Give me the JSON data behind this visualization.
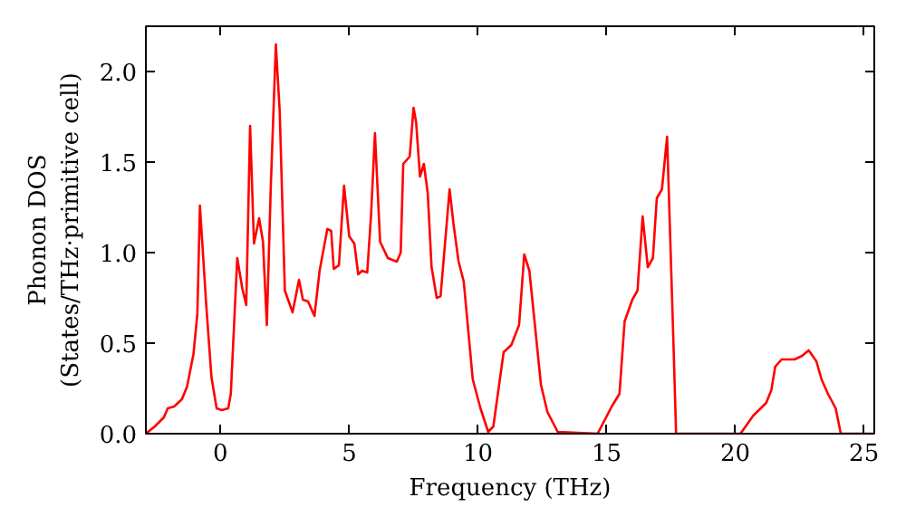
{
  "chart_data": {
    "type": "line",
    "xlabel": "Frequency (THz)",
    "ylabel": "Phonon DOS\n(States/THz·primitive cell)",
    "xlim": [
      -2.9,
      25.4
    ],
    "ylim": [
      0,
      2.25
    ],
    "xticks": [
      0,
      5,
      10,
      15,
      20,
      25
    ],
    "yticks": [
      {
        "value": 0,
        "label": "0.0"
      },
      {
        "value": 0.5,
        "label": "0.5"
      },
      {
        "value": 1,
        "label": "1.0"
      },
      {
        "value": 1.5,
        "label": "1.5"
      },
      {
        "value": 2,
        "label": "2.0"
      }
    ],
    "grid": false,
    "marker": "none",
    "line_style": "solid",
    "series": [
      {
        "color": "#ff0000",
        "x": [
          -2.9,
          -2.55,
          -2.2,
          -2.05,
          -1.8,
          -1.5,
          -1.3,
          -1.05,
          -0.9,
          -0.8,
          -0.55,
          -0.35,
          -0.15,
          0.05,
          0.3,
          0.4,
          0.65,
          0.85,
          1.0,
          1.15,
          1.3,
          1.5,
          1.65,
          1.8,
          1.95,
          2.15,
          2.3,
          2.5,
          2.8,
          3.05,
          3.2,
          3.4,
          3.65,
          3.85,
          4.15,
          4.3,
          4.4,
          4.6,
          4.8,
          5.0,
          5.2,
          5.35,
          5.5,
          5.7,
          5.85,
          6.0,
          6.2,
          6.5,
          6.85,
          7.0,
          7.1,
          7.35,
          7.5,
          7.6,
          7.75,
          7.9,
          8.05,
          8.2,
          8.4,
          8.55,
          8.9,
          9.05,
          9.25,
          9.45,
          9.8,
          10.1,
          10.4,
          10.6,
          11.0,
          11.3,
          11.6,
          11.8,
          12.0,
          12.45,
          12.7,
          13.1,
          14.65,
          15.2,
          15.5,
          15.7,
          16.0,
          16.2,
          16.4,
          16.6,
          16.8,
          16.95,
          17.15,
          17.35,
          17.6,
          17.7,
          20.2,
          20.7,
          21.2,
          21.4,
          21.55,
          21.8,
          22.3,
          22.6,
          22.85,
          23.15,
          23.35,
          23.6,
          23.9,
          24.1,
          25.4
        ],
        "values": [
          0.0,
          0.04,
          0.09,
          0.14,
          0.15,
          0.19,
          0.26,
          0.44,
          0.66,
          1.26,
          0.7,
          0.31,
          0.14,
          0.13,
          0.14,
          0.22,
          0.97,
          0.8,
          0.71,
          1.7,
          1.05,
          1.19,
          1.06,
          0.6,
          1.35,
          2.15,
          1.78,
          0.79,
          0.67,
          0.85,
          0.74,
          0.73,
          0.65,
          0.9,
          1.13,
          1.12,
          0.91,
          0.93,
          1.37,
          1.09,
          1.05,
          0.88,
          0.9,
          0.89,
          1.21,
          1.66,
          1.06,
          0.97,
          0.95,
          1.0,
          1.49,
          1.53,
          1.8,
          1.72,
          1.42,
          1.49,
          1.33,
          0.92,
          0.75,
          0.76,
          1.35,
          1.16,
          0.95,
          0.84,
          0.3,
          0.14,
          0.01,
          0.04,
          0.45,
          0.49,
          0.6,
          0.99,
          0.9,
          0.27,
          0.12,
          0.01,
          0.0,
          0.15,
          0.22,
          0.62,
          0.74,
          0.79,
          1.2,
          0.92,
          0.97,
          1.3,
          1.35,
          1.64,
          0.49,
          0.0,
          0.0,
          0.1,
          0.17,
          0.24,
          0.37,
          0.41,
          0.41,
          0.43,
          0.46,
          0.4,
          0.3,
          0.22,
          0.14,
          0.0,
          0.0
        ]
      }
    ]
  }
}
